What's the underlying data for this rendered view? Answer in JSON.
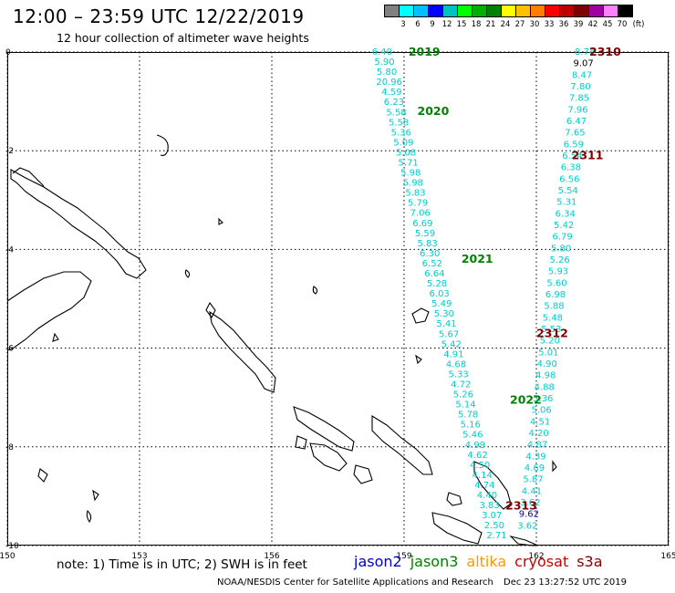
{
  "header": {
    "title": "12:00 – 23:59 UTC 12/22/2019",
    "subtitle": "12 hour collection of altimeter wave heights"
  },
  "legend": {
    "labels": [
      "3",
      "6",
      "9",
      "12",
      "15",
      "18",
      "21",
      "24",
      "27",
      "30",
      "33",
      "36",
      "39",
      "42",
      "45",
      "70"
    ],
    "unit": "(ft)",
    "colors": [
      "#808080",
      "#00ffff",
      "#00bfff",
      "#0000ff",
      "#00c0c0",
      "#00ff00",
      "#00b000",
      "#008000",
      "#ffff00",
      "#ffc000",
      "#ff8000",
      "#ff0000",
      "#c00000",
      "#800000",
      "#a000a0",
      "#ff80ff",
      "#000000"
    ]
  },
  "axes": {
    "x_ticks": [
      "150",
      "153",
      "156",
      "159",
      "162",
      "165"
    ],
    "y_ticks": [
      "0",
      "-2",
      "-4",
      "-6",
      "-8",
      "-10"
    ]
  },
  "tracks": {
    "west": {
      "colors": {
        "label": "#008000",
        "value": "#00cccc"
      },
      "time_labels": [
        {
          "text": "2019",
          "lon": 159.1,
          "lat": 0.0
        },
        {
          "text": "2020",
          "lon": 159.3,
          "lat": -1.2
        },
        {
          "text": "2021",
          "lon": 160.3,
          "lat": -4.2
        },
        {
          "text": "2022",
          "lon": 161.4,
          "lat": -7.05
        }
      ],
      "values": [
        "6.40",
        "5.90",
        "5.80",
        "20.96",
        "4.59",
        "6.23",
        "5.58",
        "5.58",
        "5.36",
        "5.09",
        "5.08",
        "5.71",
        "5.98",
        "5.98",
        "5.83",
        "5.79",
        "7.06",
        "6.69",
        "5.59",
        "5.83",
        "6.30",
        "6.52",
        "6.64",
        "5.28",
        "6.03",
        "5.49",
        "5.30",
        "5.41",
        "5.67",
        "5.42",
        "4.91",
        "4.68",
        "5.33",
        "4.72",
        "5.26",
        "5.14",
        "5.78",
        "5.16",
        "5.46",
        "4.99",
        "4.62",
        "4.50",
        "4.14",
        "4.74",
        "4.40",
        "3.83",
        "3.07",
        "2.50",
        "2.71"
      ]
    },
    "east": {
      "colors": {
        "label": "#800000",
        "value": "#00cccc"
      },
      "time_labels": [
        {
          "text": "2310",
          "lon": 163.2,
          "lat": 0.0
        },
        {
          "text": "2311",
          "lon": 162.8,
          "lat": -2.1
        },
        {
          "text": "2312",
          "lon": 162.0,
          "lat": -5.7
        },
        {
          "text": "2313",
          "lon": 161.3,
          "lat": -9.2
        }
      ],
      "values": [
        "8.74",
        "9.07",
        "8.47",
        "7.80",
        "7.85",
        "7.96",
        "6.47",
        "7.65",
        "6.59",
        "6.54",
        "6.38",
        "6.56",
        "5.54",
        "5.31",
        "6.34",
        "5.42",
        "6.79",
        "5.80",
        "5.26",
        "5.93",
        "5.60",
        "6.98",
        "5.88",
        "5.48",
        "5.53",
        "5.20",
        "5.01",
        "4.90",
        "4.98",
        "4.88",
        "5.36",
        "5.06",
        "4.51",
        "4.20",
        "4.87",
        "4.39",
        "4.69",
        "5.87",
        "4.41",
        "3.62",
        "9.62",
        "3.62"
      ],
      "special_colors": {
        "1": "#000000",
        "40": "#0000cc"
      }
    }
  },
  "footer": {
    "note": "note:  1) Time is in UTC;  2) SWH is in feet",
    "satellites": [
      {
        "name": "jason2",
        "color": "#0000cc"
      },
      {
        "name": "jason3",
        "color": "#008000"
      },
      {
        "name": "altika",
        "color": "#ff9900"
      },
      {
        "name": "cryosat",
        "color": "#cc0000"
      },
      {
        "name": "s3a",
        "color": "#800000"
      }
    ],
    "credit": "NOAA/NESDIS Center for Satellite Applications and Research",
    "timestamp": "Dec 23 13:27:52 UTC 2019"
  }
}
